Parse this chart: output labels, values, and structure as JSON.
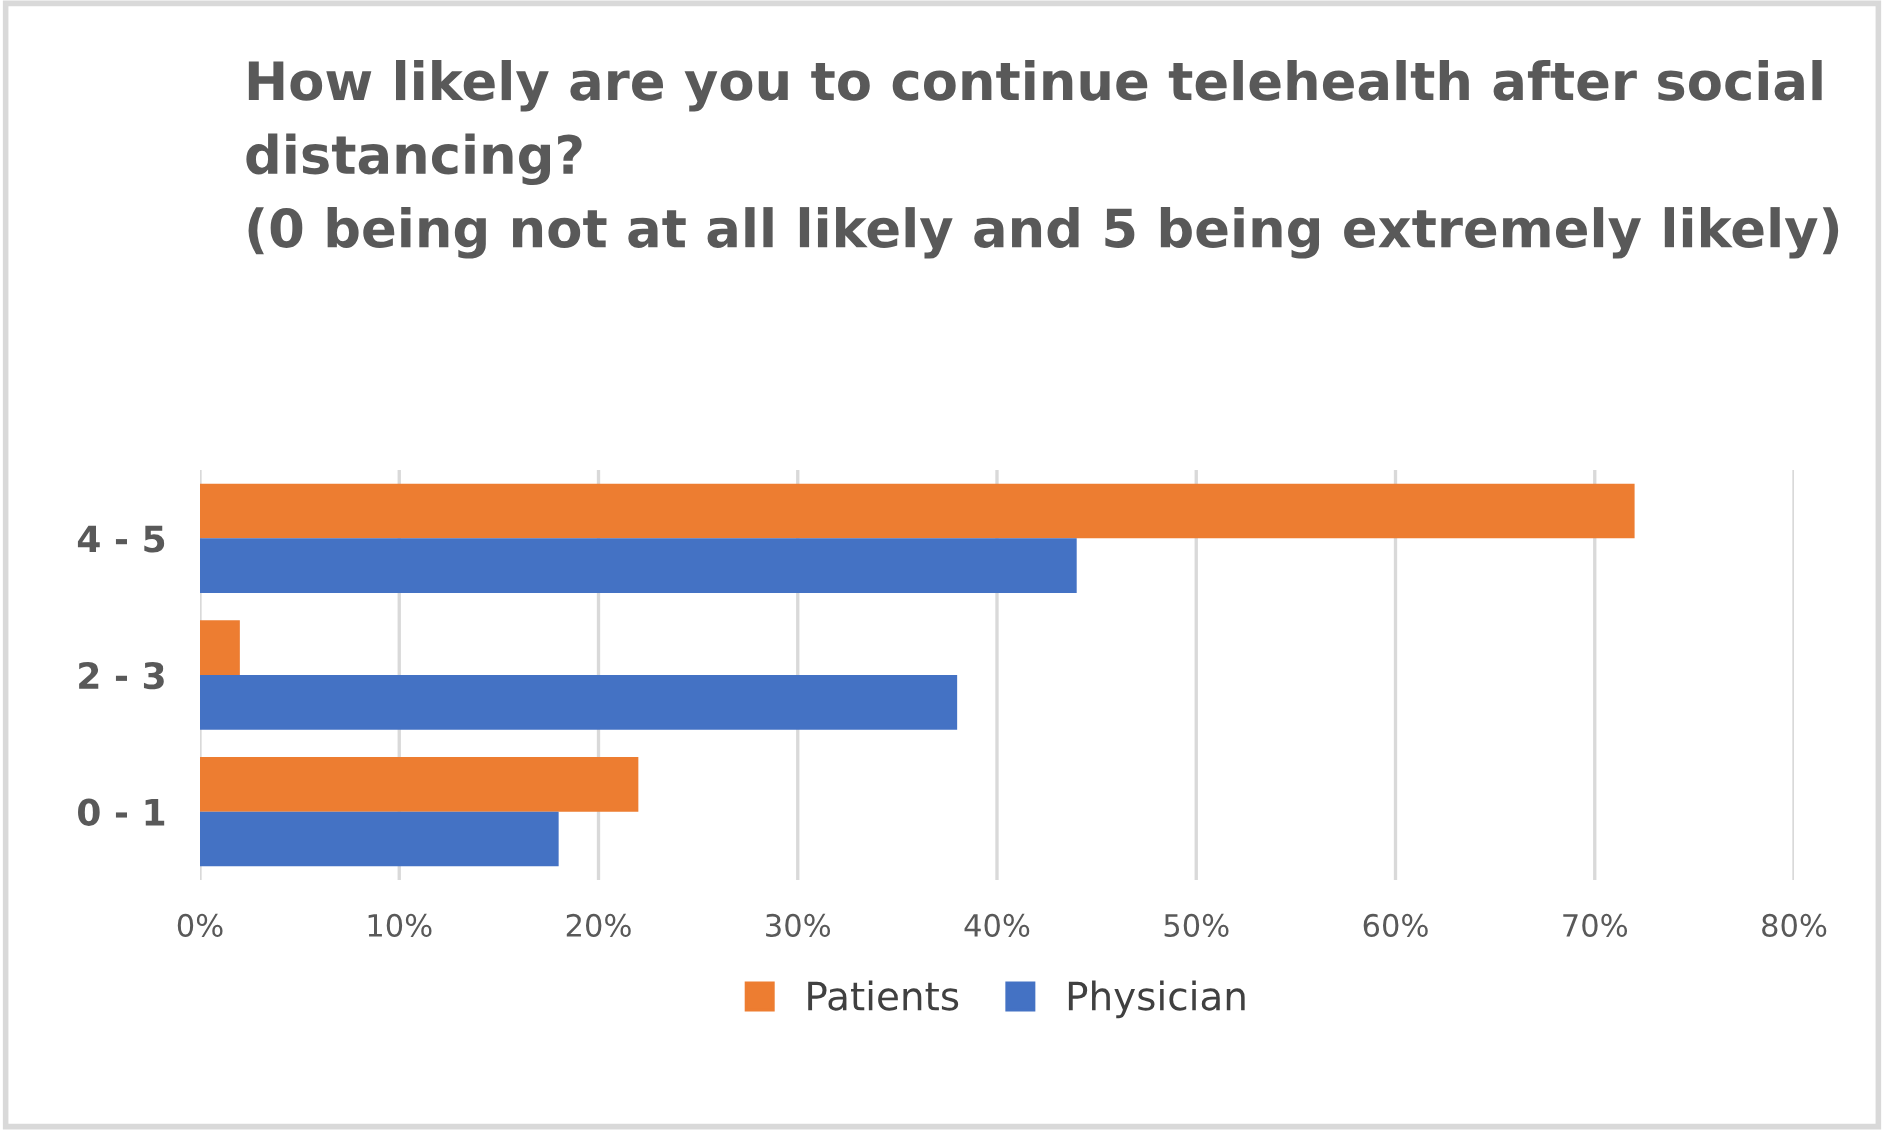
{
  "chart_data": {
    "type": "bar",
    "orientation": "horizontal",
    "title": "How likely are you to continue telehealth after social distancing?\n(0 being not at all likely and 5 being extremely likely)",
    "categories": [
      "4 - 5",
      "2 - 3",
      "0 - 1"
    ],
    "series": [
      {
        "name": "Patients",
        "color": "#ed7d31",
        "values": [
          72,
          2,
          22
        ]
      },
      {
        "name": "Physician",
        "color": "#4472c4",
        "values": [
          44,
          38,
          18
        ]
      }
    ],
    "xlim": [
      0,
      80
    ],
    "xticks": [
      {
        "value": 0,
        "label": "0%"
      },
      {
        "value": 10,
        "label": "10%"
      },
      {
        "value": 20,
        "label": "20%"
      },
      {
        "value": 30,
        "label": "30%"
      },
      {
        "value": 40,
        "label": "40%"
      },
      {
        "value": 50,
        "label": "50%"
      },
      {
        "value": 60,
        "label": "60%"
      },
      {
        "value": 70,
        "label": "70%"
      },
      {
        "value": 80,
        "label": "80%"
      }
    ],
    "grid": "x",
    "legend": "bottom"
  }
}
